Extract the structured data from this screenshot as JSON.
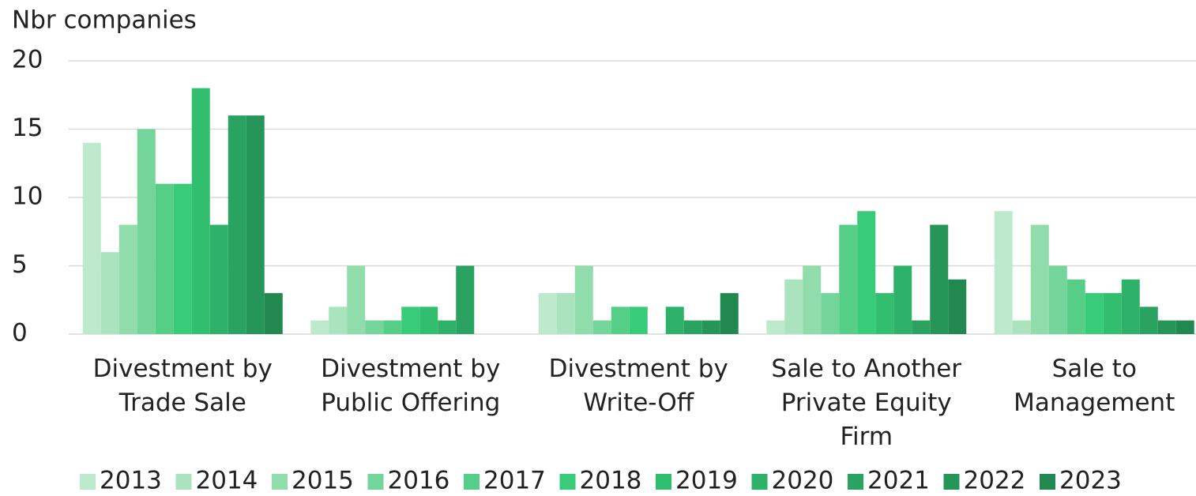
{
  "chart_data": {
    "type": "bar",
    "y_axis_label": "Nbr companies",
    "categories": [
      "Divestment by Trade Sale",
      "Divestment by Public Offering",
      "Divestment by Write-Off",
      "Sale to Another Private Equity Firm",
      "Sale to Management"
    ],
    "series": [
      {
        "name": "2013",
        "color": "#bdeacc",
        "values": [
          14,
          1,
          3,
          1,
          9
        ]
      },
      {
        "name": "2014",
        "color": "#a9e4be",
        "values": [
          6,
          2,
          3,
          4,
          1
        ]
      },
      {
        "name": "2015",
        "color": "#90dcab",
        "values": [
          8,
          5,
          5,
          5,
          8
        ]
      },
      {
        "name": "2016",
        "color": "#73d599",
        "values": [
          15,
          1,
          1,
          3,
          5
        ]
      },
      {
        "name": "2017",
        "color": "#55cf88",
        "values": [
          11,
          1,
          2,
          8,
          4
        ]
      },
      {
        "name": "2018",
        "color": "#38cb78",
        "values": [
          11,
          2,
          2,
          9,
          3
        ]
      },
      {
        "name": "2019",
        "color": "#31bf6f",
        "values": [
          18,
          2,
          0,
          3,
          3
        ]
      },
      {
        "name": "2020",
        "color": "#2eb168",
        "values": [
          8,
          1,
          2,
          5,
          4
        ]
      },
      {
        "name": "2021",
        "color": "#2aa361",
        "values": [
          16,
          5,
          1,
          1,
          2
        ]
      },
      {
        "name": "2022",
        "color": "#269658",
        "values": [
          16,
          0,
          1,
          8,
          1
        ]
      },
      {
        "name": "2023",
        "color": "#218950",
        "values": [
          3,
          0,
          3,
          4,
          1
        ]
      }
    ],
    "ylim": [
      0,
      20
    ],
    "yticks": [
      0,
      5,
      10,
      15,
      20
    ],
    "grid": true,
    "legend": "bottom"
  }
}
